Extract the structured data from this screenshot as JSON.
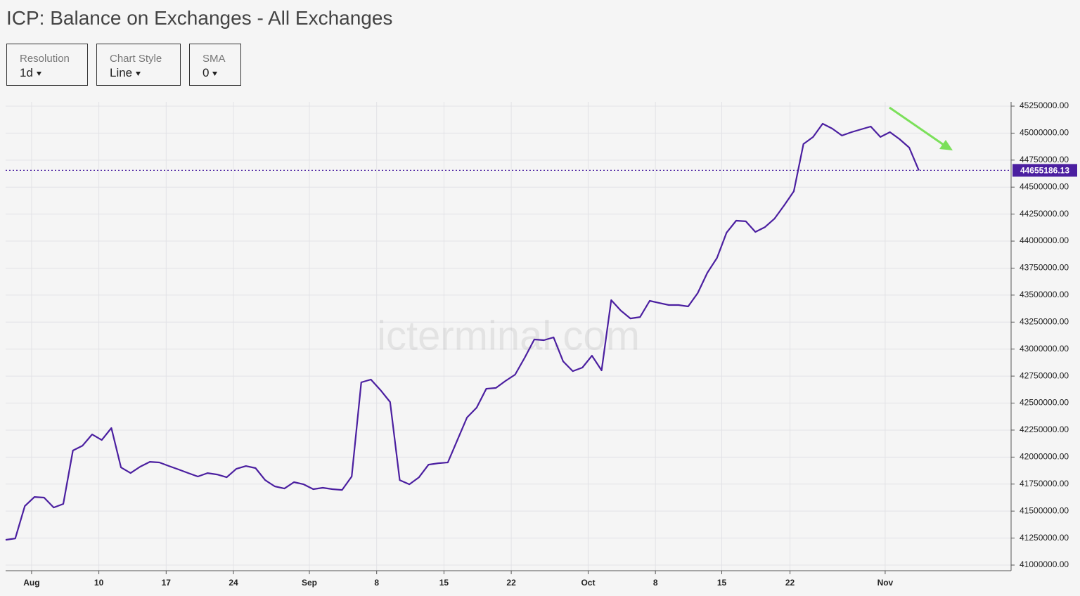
{
  "title": "ICP: Balance on Exchanges - All Exchanges",
  "controls": [
    {
      "label": "Resolution",
      "value": "1d"
    },
    {
      "label": "Chart Style",
      "value": "Line"
    },
    {
      "label": "SMA",
      "value": "0"
    }
  ],
  "chart_data": {
    "type": "line",
    "watermark": "icterminal.com",
    "series": [
      {
        "name": "Balance on Exchanges",
        "color": "#4b1fa0",
        "values": [
          41234000,
          41247000,
          41546000,
          41631000,
          41625000,
          41533000,
          41566000,
          42061000,
          42106000,
          42210000,
          42158000,
          42269000,
          41904000,
          41852000,
          41911000,
          41956000,
          41950000,
          41917000,
          41885000,
          41852000,
          41820000,
          41852000,
          41839000,
          41813000,
          41891000,
          41917000,
          41898000,
          41787000,
          41729000,
          41709000,
          41768000,
          41748000,
          41703000,
          41716000,
          41703000,
          41696000,
          41820000,
          42692000,
          42718000,
          42620000,
          42510000,
          41787000,
          41748000,
          41813000,
          41930000,
          41943000,
          41950000,
          42158000,
          42367000,
          42458000,
          42633000,
          42640000,
          42705000,
          42764000,
          42920000,
          43089000,
          43083000,
          43109000,
          42887000,
          42796000,
          42829000,
          42939000,
          42803000,
          43454000,
          43356000,
          43284000,
          43297000,
          43447000,
          43427000,
          43408000,
          43408000,
          43395000,
          43519000,
          43707000,
          43844000,
          44078000,
          44189000,
          44183000,
          44085000,
          44130000,
          44209000,
          44332000,
          44462000,
          44899000,
          44964000,
          45087000,
          45042000,
          44977000,
          45009000,
          45035000,
          45061000,
          44964000,
          45009000,
          44944000,
          44866000,
          44655186.13
        ]
      }
    ],
    "xlim": [
      0,
      104.6
    ],
    "xticks": [
      {
        "value": 2.7,
        "label": "Aug"
      },
      {
        "value": 9.7,
        "label": "10"
      },
      {
        "value": 16.7,
        "label": "17"
      },
      {
        "value": 23.7,
        "label": "24"
      },
      {
        "value": 31.6,
        "label": "Sep"
      },
      {
        "value": 38.6,
        "label": "8"
      },
      {
        "value": 45.6,
        "label": "15"
      },
      {
        "value": 52.6,
        "label": "22"
      },
      {
        "value": 60.6,
        "label": "Oct"
      },
      {
        "value": 67.6,
        "label": "8"
      },
      {
        "value": 74.5,
        "label": "15"
      },
      {
        "value": 81.6,
        "label": "22"
      },
      {
        "value": 91.5,
        "label": "Nov"
      }
    ],
    "ylim": [
      40948000,
      45289000
    ],
    "yticks": [
      {
        "value": 41000000,
        "label": "41000000.00"
      },
      {
        "value": 41250000,
        "label": "41250000.00"
      },
      {
        "value": 41500000,
        "label": "41500000.00"
      },
      {
        "value": 41750000,
        "label": "41750000.00"
      },
      {
        "value": 42000000,
        "label": "42000000.00"
      },
      {
        "value": 42250000,
        "label": "42250000.00"
      },
      {
        "value": 42500000,
        "label": "42500000.00"
      },
      {
        "value": 42750000,
        "label": "42750000.00"
      },
      {
        "value": 43000000,
        "label": "43000000.00"
      },
      {
        "value": 43250000,
        "label": "43250000.00"
      },
      {
        "value": 43500000,
        "label": "43500000.00"
      },
      {
        "value": 43750000,
        "label": "43750000.00"
      },
      {
        "value": 44000000,
        "label": "44000000.00"
      },
      {
        "value": 44250000,
        "label": "44250000.00"
      },
      {
        "value": 44500000,
        "label": "44500000.00"
      },
      {
        "value": 44750000,
        "label": "44750000.00"
      },
      {
        "value": 45000000,
        "label": "45000000.00"
      },
      {
        "value": 45250000,
        "label": "45250000.00"
      }
    ],
    "grid": true
  }
}
